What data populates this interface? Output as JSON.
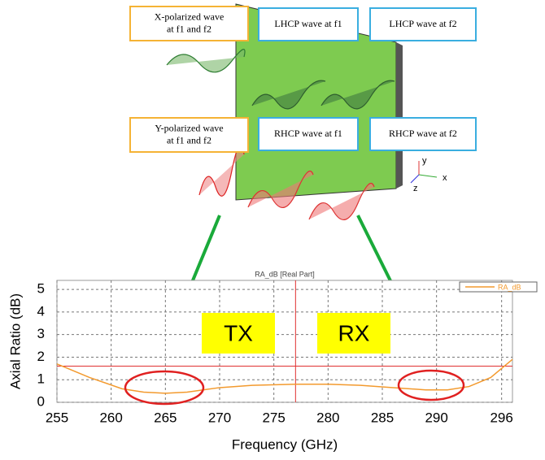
{
  "diagram": {
    "boxes": [
      {
        "lines": [
          "X-polarized wave",
          "at f1 and f2"
        ]
      },
      {
        "lines": [
          "LHCP wave at f1"
        ]
      },
      {
        "lines": [
          "LHCP wave at f2"
        ]
      },
      {
        "lines": [
          "Y-polarized wave",
          "at f1 and f2"
        ]
      },
      {
        "lines": [
          "RHCP wave at f1"
        ]
      },
      {
        "lines": [
          "RHCP wave at f2"
        ]
      }
    ],
    "axes_labels": [
      "y",
      "x",
      "z"
    ]
  },
  "chart_data": {
    "type": "line",
    "title": "RA_dB [Real Part]",
    "x_label": "Frequency (GHz)",
    "y_label": "Axial Ratio (dB)",
    "x": [
      255,
      258,
      261,
      263,
      265,
      267,
      270,
      273,
      277,
      280,
      283,
      286,
      289,
      291,
      293,
      295,
      297
    ],
    "series": [
      {
        "name": "RA_dB",
        "color": "#f39a2e",
        "values": [
          1.7,
          1.1,
          0.6,
          0.45,
          0.4,
          0.45,
          0.65,
          0.75,
          0.8,
          0.8,
          0.75,
          0.65,
          0.55,
          0.55,
          0.7,
          1.1,
          1.9
        ]
      }
    ],
    "xlim": [
      255,
      297
    ],
    "ylim": [
      0,
      5.4
    ],
    "xticks": [
      255,
      260,
      265,
      270,
      275,
      280,
      285,
      290,
      296
    ],
    "yticks": [
      0,
      1,
      2,
      3,
      4,
      5
    ],
    "grid": true,
    "hline": 1.6,
    "vline": 277,
    "annotations": [
      "TX",
      "RX"
    ]
  }
}
